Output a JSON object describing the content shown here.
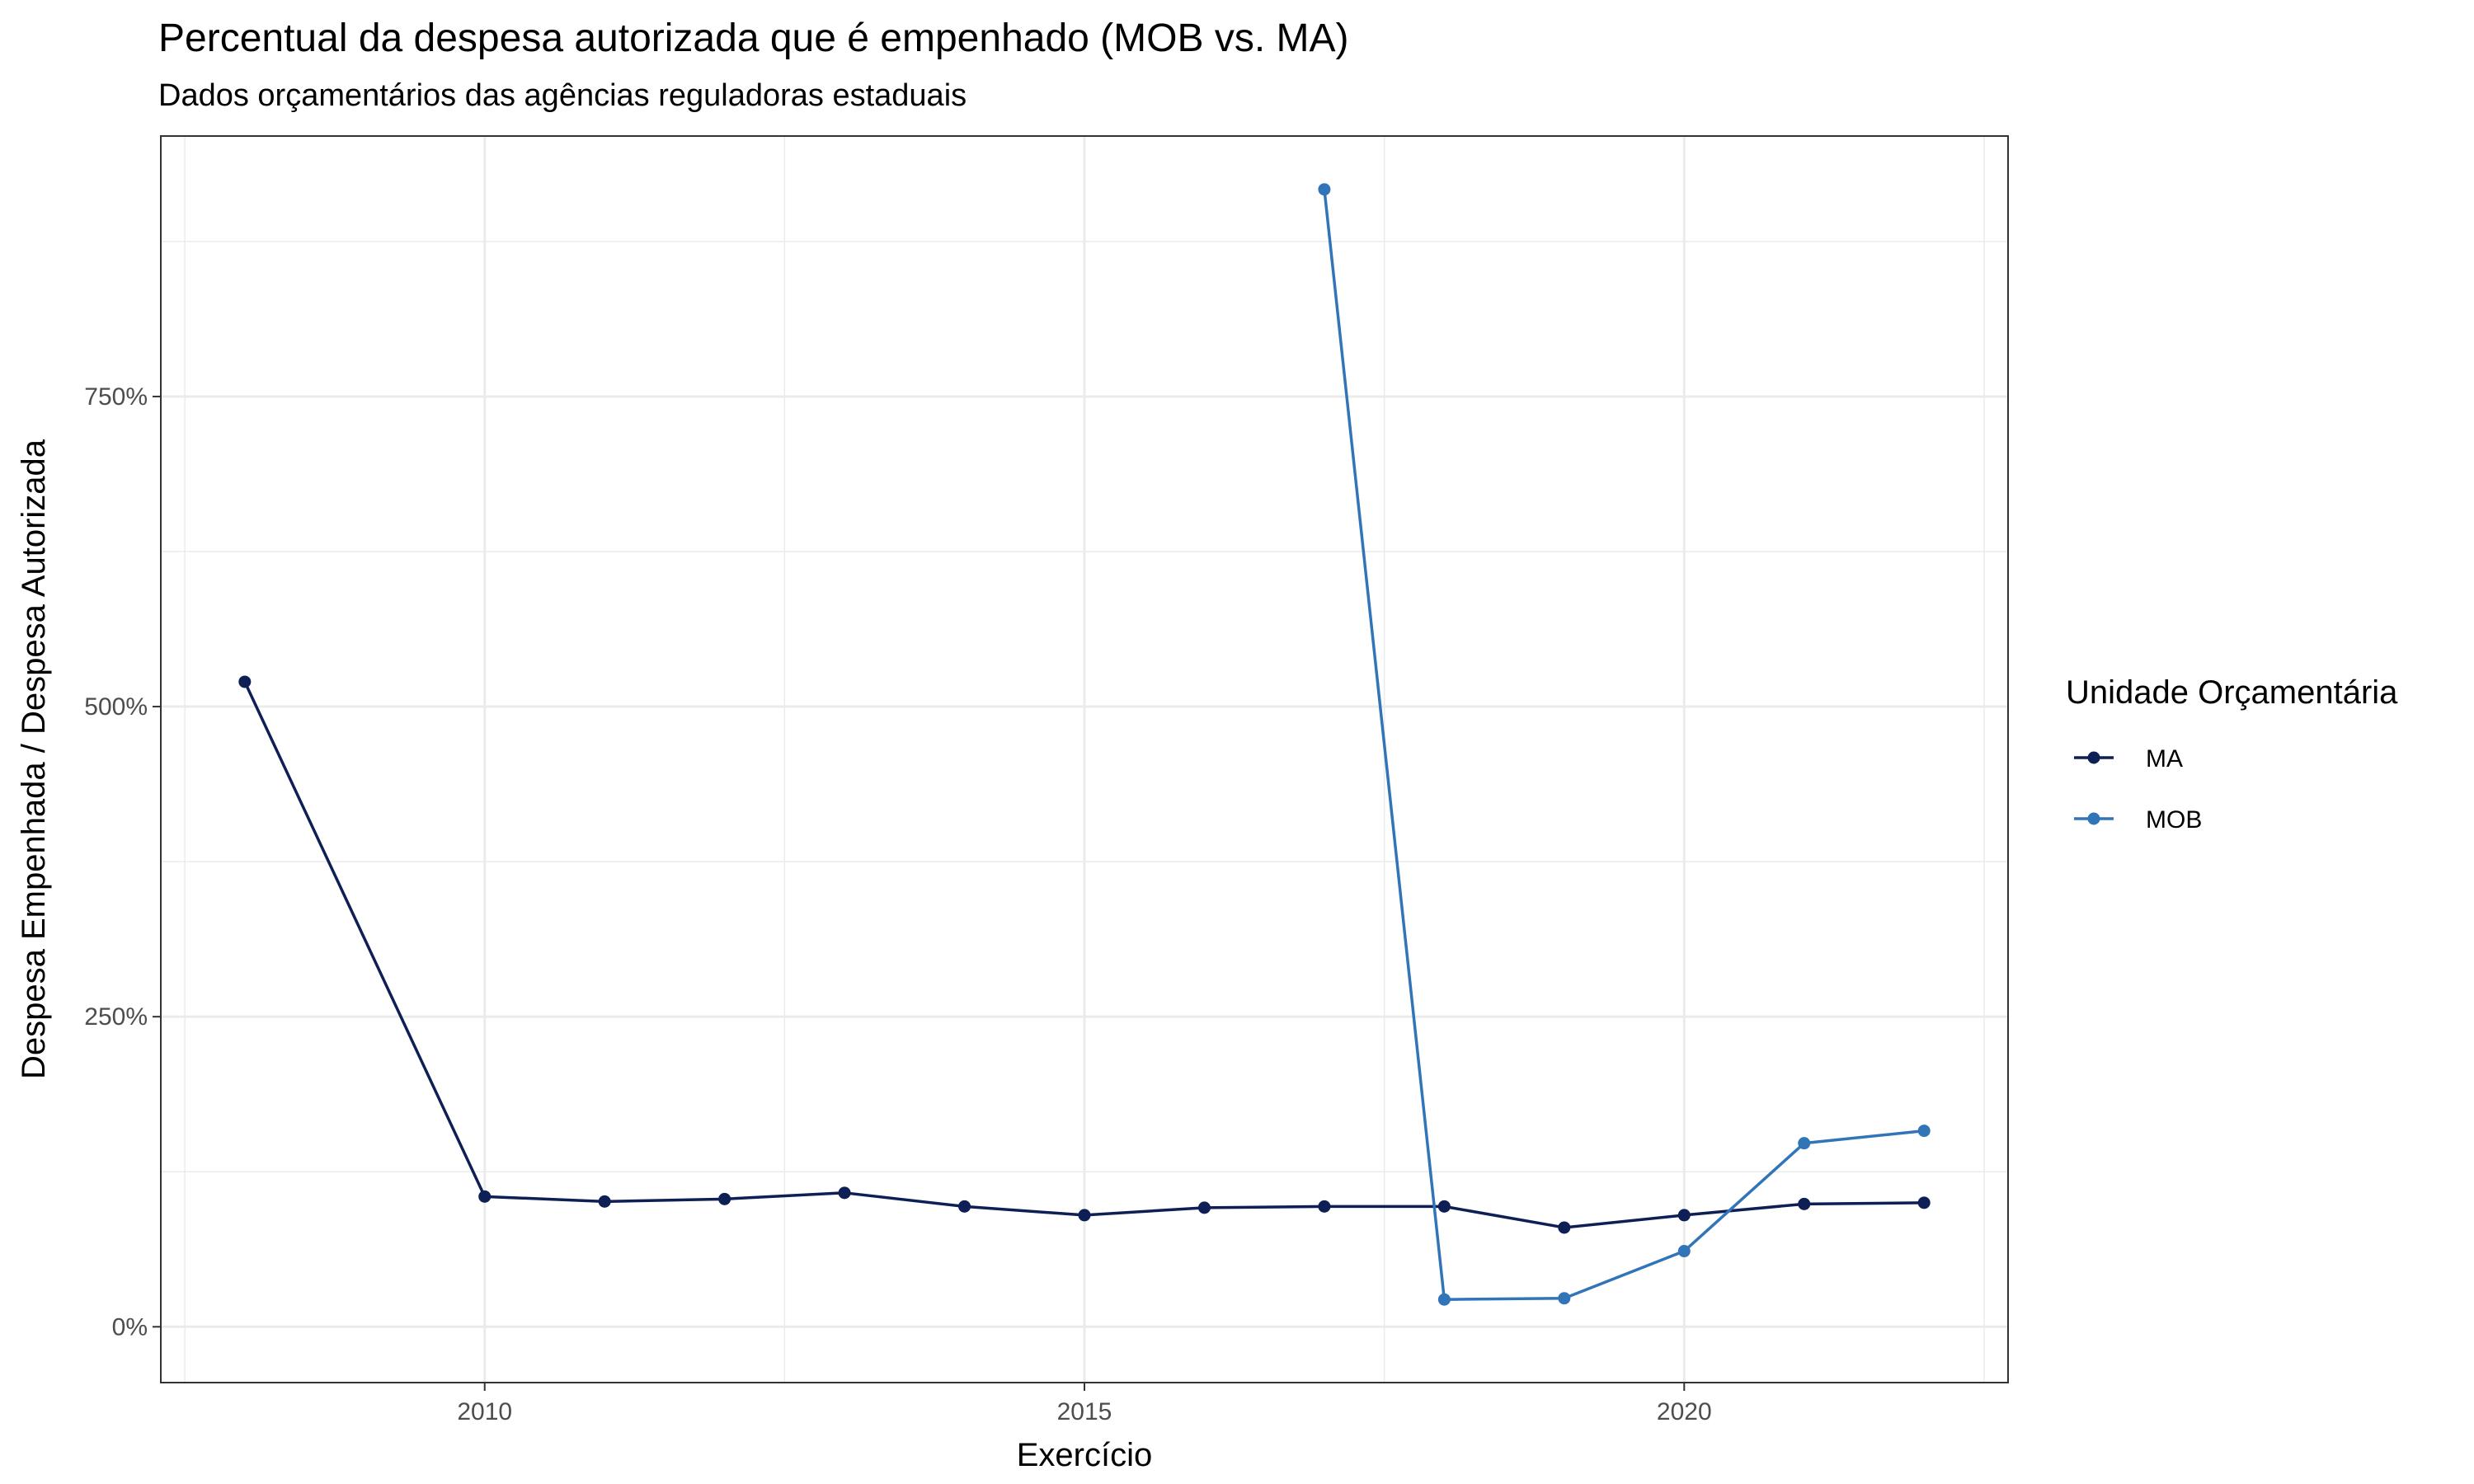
{
  "chart_data": {
    "type": "line",
    "title": "Percentual da despesa autorizada que é empenhado (MOB vs. MA)",
    "subtitle": "Dados orçamentários das agências reguladoras estaduais",
    "xlabel": "Exercício",
    "ylabel": "Despesa Empenhada / Despesa Autorizada",
    "xlim": [
      2007.3,
      2022.7
    ],
    "ylim": [
      -45,
      960
    ],
    "x_ticks": [
      2010,
      2015,
      2020
    ],
    "x_tick_labels": [
      "2010",
      "2015",
      "2020"
    ],
    "y_ticks": [
      0,
      250,
      500,
      750
    ],
    "y_tick_labels": [
      "0%",
      "250%",
      "500%",
      "750%"
    ],
    "grid": true,
    "legend_title": "Unidade Orçamentária",
    "legend_position": "right",
    "series": [
      {
        "name": "MA",
        "color": "#0d1f55",
        "x": [
          2008,
          2010,
          2011,
          2012,
          2013,
          2014,
          2015,
          2016,
          2017,
          2018,
          2019,
          2020,
          2021,
          2022
        ],
        "y": [
          520,
          105,
          101,
          103,
          108,
          97,
          90,
          96,
          97,
          97,
          80,
          90,
          99,
          100
        ]
      },
      {
        "name": "MOB",
        "color": "#3274b8",
        "x": [
          2017,
          2018,
          2019,
          2020,
          2021,
          2022
        ],
        "y": [
          917,
          22,
          23,
          61,
          148,
          158
        ]
      }
    ]
  }
}
